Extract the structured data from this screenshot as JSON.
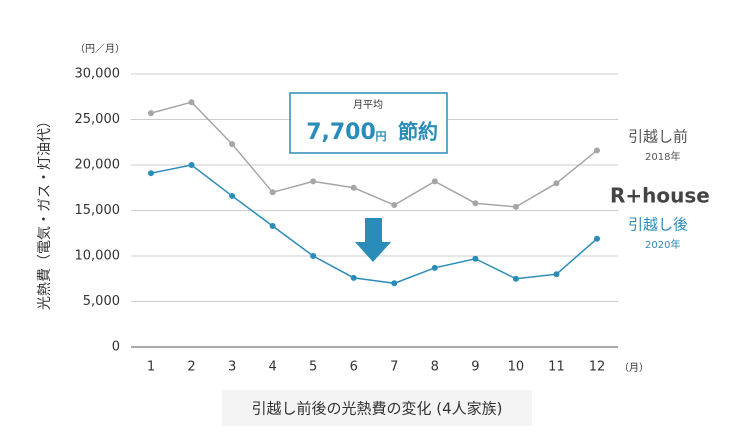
{
  "chart_data": {
    "type": "line",
    "y_unit": "（円／月）",
    "y_axis_label": "光熱費（電気・ガス・灯油代）",
    "x_unit": "（月）",
    "title": "引越し前後の光熱費の変化 (4人家族)",
    "categories": [
      "1",
      "2",
      "3",
      "4",
      "5",
      "6",
      "7",
      "8",
      "9",
      "10",
      "11",
      "12"
    ],
    "series": [
      {
        "name": "引越し前",
        "year": "2018年",
        "color": "#a6a6a6",
        "values": [
          25700,
          26900,
          22300,
          17000,
          18200,
          17500,
          15600,
          18200,
          15800,
          15400,
          18000,
          21600
        ]
      },
      {
        "name": "引越し後",
        "year": "2020年",
        "color": "#2a8cb8",
        "values": [
          19100,
          20000,
          16600,
          13300,
          10000,
          7600,
          7000,
          8700,
          9700,
          7500,
          8000,
          11900
        ]
      }
    ],
    "ylim": [
      0,
      30000
    ],
    "yticks": [
      0,
      {
        "value": 5000,
        "label": "5,000"
      },
      {
        "value": 10000,
        "label": "10,000"
      },
      {
        "value": 15000,
        "label": "15,000"
      },
      {
        "value": 20000,
        "label": "20,000"
      },
      {
        "value": 25000,
        "label": "25,000"
      },
      {
        "value": 30000,
        "label": "30,000"
      }
    ],
    "grid": true,
    "annotation": {
      "heading": "月平均",
      "amount": "7,700",
      "unit": "円",
      "word": "節約"
    },
    "brand": "R+house"
  }
}
